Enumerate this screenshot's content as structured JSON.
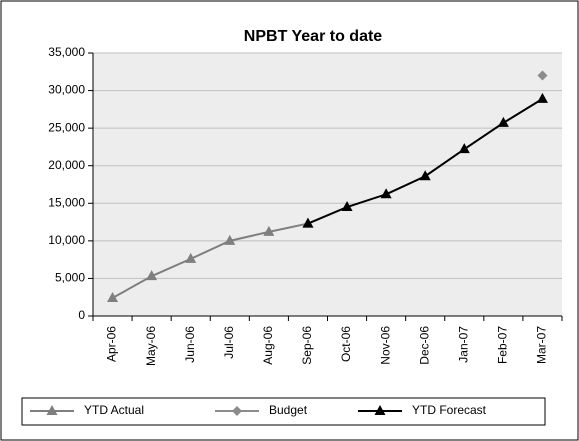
{
  "chart_data": {
    "type": "line",
    "title": "NPBT Year to date",
    "categories": [
      "Apr-06",
      "May-06",
      "Jun-06",
      "Jul-06",
      "Aug-06",
      "Sep-06",
      "Oct-06",
      "Nov-06",
      "Dec-06",
      "Jan-07",
      "Feb-07",
      "Mar-07"
    ],
    "series": [
      {
        "name": "YTD Actual",
        "color": "#7f7f7f",
        "marker": "triangle",
        "values": [
          2400,
          5300,
          7600,
          10000,
          11200,
          12300,
          null,
          null,
          null,
          null,
          null,
          null
        ]
      },
      {
        "name": "Budget",
        "color": "#8c8c8c",
        "marker": "diamond",
        "values": [
          null,
          null,
          null,
          null,
          null,
          null,
          null,
          null,
          null,
          null,
          null,
          32000
        ]
      },
      {
        "name": "YTD Forecast",
        "color": "#000000",
        "marker": "triangle",
        "values": [
          null,
          null,
          null,
          null,
          null,
          12300,
          14500,
          16200,
          18600,
          22200,
          25700,
          28900
        ]
      }
    ],
    "ylim": [
      0,
      35000
    ],
    "yticks": [
      0,
      {
        "value": 5000,
        "label": "5,000"
      },
      {
        "value": 10000,
        "label": "10,000"
      },
      {
        "value": 15000,
        "label": "15,000"
      },
      {
        "value": 20000,
        "label": "20,000"
      },
      {
        "value": 25000,
        "label": "25,000"
      },
      {
        "value": 30000,
        "label": "30,000"
      },
      {
        "value": 35000,
        "label": "35,000"
      }
    ],
    "grid": true,
    "legend": "bottom"
  }
}
